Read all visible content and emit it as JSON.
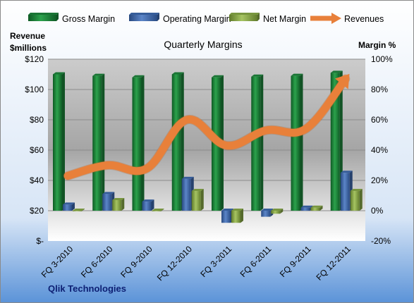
{
  "chart_data": {
    "type": "bar",
    "title": "Quarterly Margins",
    "left_axis_title": [
      "Revenue",
      "$millions"
    ],
    "right_axis_title": "Margin %",
    "footer": "Qlik Technologies",
    "categories": [
      "FQ 3-2010",
      "FQ 6-2010",
      "FQ 9-2010",
      "FQ 12-2010",
      "FQ 3-2011",
      "FQ 6-2011",
      "FQ 9-2011",
      "FQ 12-2011"
    ],
    "left_axis": {
      "ylim": [
        0,
        120
      ],
      "ticks": [
        0,
        20,
        40,
        60,
        80,
        100,
        120
      ],
      "tick_labels": [
        "$-",
        "$20",
        "$40",
        "$60",
        "$80",
        "$100",
        "$120"
      ]
    },
    "right_axis": {
      "ylim": [
        -20,
        100
      ],
      "ticks": [
        -20,
        0,
        20,
        40,
        60,
        80,
        100
      ],
      "tick_labels": [
        "-20%",
        "0%",
        "20%",
        "40%",
        "60%",
        "80%",
        "100%"
      ]
    },
    "series": [
      {
        "name": "Gross Margin",
        "type": "bar",
        "axis": "right",
        "color": "#1e8a3e",
        "values": [
          90,
          89,
          88,
          90,
          88,
          88.5,
          89,
          91
        ]
      },
      {
        "name": "Operating Margin",
        "type": "bar",
        "axis": "right",
        "color": "#3f6db5",
        "values": [
          4,
          11,
          6,
          21,
          -8,
          -4,
          2,
          25
        ]
      },
      {
        "name": "Net Margin",
        "type": "bar",
        "axis": "right",
        "color": "#8db04a",
        "values": [
          0,
          7,
          0,
          13,
          -8,
          -2,
          2,
          13
        ]
      },
      {
        "name": "Revenues",
        "type": "line",
        "axis": "left",
        "color": "#e8803a",
        "values": [
          43,
          50,
          48,
          80,
          63,
          73,
          74,
          107
        ]
      }
    ],
    "grid": true,
    "legend_position": "top"
  }
}
